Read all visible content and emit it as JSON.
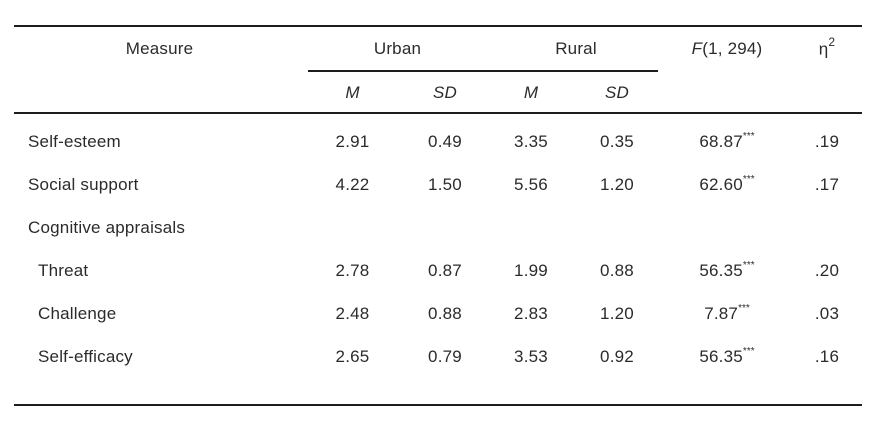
{
  "table": {
    "headers": {
      "measure": "Measure",
      "urban": "Urban",
      "rural": "Rural",
      "f_italic": "F",
      "f_rest": "(1, 294)",
      "eta_base": "η",
      "eta_sup": "2",
      "m1": "M",
      "sd1": "SD",
      "m2": "M",
      "sd2": "SD"
    },
    "rows": [
      {
        "measure": "Self-esteem",
        "urban_m": "2.91",
        "urban_sd": "0.49",
        "rural_m": "3.35",
        "rural_sd": "0.35",
        "f": "68.87",
        "f_sup": "***",
        "eta": ".19"
      },
      {
        "measure": "Social support",
        "urban_m": "4.22",
        "urban_sd": "1.50",
        "rural_m": "5.56",
        "rural_sd": "1.20",
        "f": "62.60",
        "f_sup": "***",
        "eta": ".17"
      },
      {
        "measure": "Cognitive appraisals"
      },
      {
        "measure": "Threat",
        "urban_m": "2.78",
        "urban_sd": "0.87",
        "rural_m": "1.99",
        "rural_sd": "0.88",
        "f": "56.35",
        "f_sup": "***",
        "eta": ".20"
      },
      {
        "measure": "Challenge",
        "urban_m": "2.48",
        "urban_sd": "0.88",
        "rural_m": "2.83",
        "rural_sd": "1.20",
        "f": "7.87",
        "f_sup": "***",
        "eta": ".03"
      },
      {
        "measure": "Self-efficacy",
        "urban_m": "2.65",
        "urban_sd": "0.79",
        "rural_m": "3.53",
        "rural_sd": "0.92",
        "f": "56.35",
        "f_sup": "***",
        "eta": ".16"
      }
    ]
  },
  "colors": {
    "text": "#2b2b2b",
    "rule": "#1d1d1d",
    "background": "#ffffff"
  }
}
